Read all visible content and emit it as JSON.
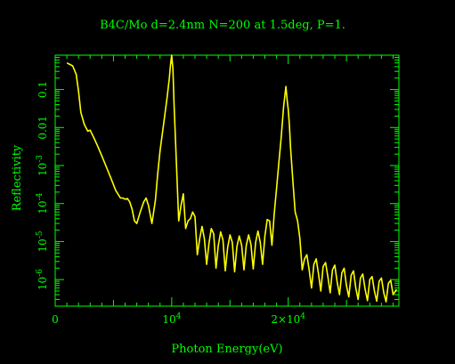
{
  "chart_data": {
    "type": "line",
    "title": "B4C/Mo d=2.4nm N=200 at 1.5deg, P=1.",
    "xlabel": "Photon Energy(eV)",
    "ylabel": "Reflectivity",
    "xlim": [
      0,
      29500
    ],
    "ylim": [
      2e-07,
      0.8
    ],
    "yscale": "log",
    "grid": false,
    "axis_color": "#00ff00",
    "line_color": "#ffff00",
    "x_ticks": [
      {
        "value": 0,
        "label": "0"
      },
      {
        "value": 10000,
        "label": "10^4"
      },
      {
        "value": 20000,
        "label": "2×10^4"
      }
    ],
    "y_ticks": [
      {
        "value": 1e-06,
        "label": "10^-6"
      },
      {
        "value": 1e-05,
        "label": "10^-5"
      },
      {
        "value": 0.0001,
        "label": "10^-4"
      },
      {
        "value": 0.001,
        "label": "10^-3"
      },
      {
        "value": 0.01,
        "label": "0.01"
      },
      {
        "value": 0.1,
        "label": "0.1"
      }
    ],
    "series": [
      {
        "x": [
          1000,
          1500,
          1800,
          2000,
          2200,
          2500,
          2800,
          3000,
          3300,
          3600,
          4000,
          4400,
          4800,
          5200,
          5600,
          5800,
          6000,
          6200,
          6400,
          6600,
          6800,
          7000,
          7300,
          7600,
          7800,
          8000,
          8300,
          8600,
          8800,
          9000,
          9300,
          9600,
          9800,
          9900,
          10000,
          10100,
          10200,
          10400,
          10600,
          10800,
          11000,
          11200,
          11400,
          11600,
          11800,
          12000,
          12200,
          12400,
          12600,
          12800,
          13000,
          13200,
          13400,
          13600,
          13800,
          14000,
          14200,
          14400,
          14600,
          14800,
          15000,
          15200,
          15400,
          15600,
          15800,
          16000,
          16200,
          16400,
          16600,
          16800,
          17000,
          17200,
          17400,
          17600,
          17800,
          18000,
          18200,
          18400,
          18600,
          18800,
          19000,
          19200,
          19400,
          19600,
          19800,
          19900,
          20000,
          20100,
          20200,
          20400,
          20600,
          20800,
          21000,
          21200,
          21400,
          21600,
          21800,
          22000,
          22200,
          22400,
          22600,
          22800,
          23000,
          23200,
          23400,
          23600,
          23800,
          24000,
          24200,
          24400,
          24600,
          24800,
          25000,
          25200,
          25400,
          25600,
          25800,
          26000,
          26200,
          26400,
          26600,
          26800,
          27000,
          27200,
          27400,
          27600,
          27800,
          28000,
          28200,
          28400,
          28600,
          28800,
          29000,
          29300
        ],
        "y": [
          0.5,
          0.42,
          0.25,
          0.09,
          0.025,
          0.012,
          0.008,
          0.0085,
          0.0055,
          0.0035,
          0.0018,
          0.0009,
          0.00045,
          0.00022,
          0.00014,
          0.00014,
          0.00013,
          0.000135,
          0.00011,
          7e-05,
          3.5e-05,
          3e-05,
          6e-05,
          0.00011,
          0.00014,
          9e-05,
          3e-05,
          0.00012,
          0.0006,
          0.0025,
          0.012,
          0.06,
          0.2,
          0.45,
          0.8,
          0.35,
          0.04,
          0.0012,
          3.5e-05,
          9e-05,
          0.00018,
          2.2e-05,
          3.5e-05,
          4e-05,
          6e-05,
          4.5e-05,
          4.5e-06,
          1.2e-05,
          2.5e-05,
          1.2e-05,
          2.5e-06,
          9e-06,
          2.2e-05,
          1.6e-05,
          2e-06,
          8e-06,
          1.8e-05,
          1.1e-05,
          1.7e-06,
          7e-06,
          1.5e-05,
          9.5e-06,
          1.6e-06,
          7.5e-06,
          1.4e-05,
          8e-06,
          1.8e-06,
          8e-06,
          1.5e-05,
          8.5e-06,
          1.9e-06,
          9.5e-06,
          1.9e-05,
          9.5e-06,
          2.5e-06,
          1.4e-05,
          3.8e-05,
          3.5e-05,
          8e-06,
          5.5e-05,
          0.00025,
          0.0012,
          0.0055,
          0.035,
          0.12,
          0.055,
          0.03,
          0.012,
          0.003,
          0.0004,
          6e-05,
          3.5e-05,
          1.2e-05,
          1.8e-06,
          3.5e-06,
          4.5e-06,
          1.8e-06,
          6e-07,
          2.5e-06,
          3.5e-06,
          1.4e-06,
          5e-07,
          2.2e-06,
          2.8e-06,
          1.2e-06,
          4.5e-07,
          1.8e-06,
          2.4e-06,
          8.5e-07,
          4e-07,
          1.5e-06,
          2e-06,
          7e-07,
          3.5e-07,
          1.3e-06,
          1.7e-06,
          6e-07,
          3e-07,
          1.1e-06,
          1.4e-06,
          5.5e-07,
          2.8e-07,
          1e-06,
          1.2e-06,
          5e-07,
          2.7e-07,
          9e-07,
          1.1e-06,
          4.5e-07,
          2.6e-07,
          8e-07,
          9.5e-07,
          4e-07,
          5.5e-07
        ]
      }
    ]
  }
}
